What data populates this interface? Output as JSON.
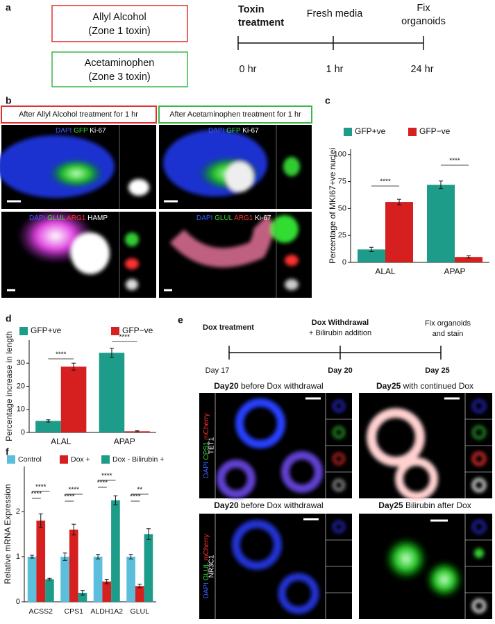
{
  "panel_a": {
    "label": "a",
    "toxins": [
      {
        "name": "Allyl Alcohol",
        "zone": "(Zone 1 toxin)"
      },
      {
        "name": "Acetaminophen",
        "zone": "(Zone 3 toxin)"
      }
    ],
    "timeline": [
      {
        "label": [
          "Toxin",
          "treatment"
        ],
        "time": "0 hr"
      },
      {
        "label": [
          "Fresh media"
        ],
        "time": "1 hr"
      },
      {
        "label": [
          "Fix",
          "organoids"
        ],
        "time": "24 hr"
      }
    ]
  },
  "panel_b": {
    "label": "b",
    "headers": [
      "After Allyl Alcohol treatment for 1 hr",
      "After Acetaminophen treatment for 1 hr"
    ],
    "stains": [
      [
        "DAPI",
        "GFP",
        "Ki-67"
      ],
      [
        "DAPI",
        "GFP",
        "Ki-67"
      ],
      [
        "DAPI",
        "GLUL",
        "ARG1",
        "HAMP"
      ],
      [
        "DAPI",
        "GLUL",
        "ARG1",
        "Ki-67"
      ]
    ]
  },
  "panel_e": {
    "label": "e",
    "timeline": [
      {
        "label": [
          "Dox treatment"
        ],
        "time": "Day 17"
      },
      {
        "label": [
          "Dox Withdrawal",
          "+ Bilirubin addition"
        ],
        "time": "Day 20"
      },
      {
        "label": [
          "Fix organoids",
          "and stain"
        ],
        "time": "Day 25"
      }
    ],
    "images": [
      {
        "day": "Day20",
        "caption": "before Dox withdrawal"
      },
      {
        "day": "Day25",
        "caption": "with continued Dox"
      },
      {
        "day": "Day20",
        "caption": "before Dox withdrawal"
      },
      {
        "day": "Day25",
        "caption": "Bilirubin after Dox"
      }
    ],
    "stains": [
      [
        "DAPI",
        "CPS1",
        "mCherry",
        "TET1"
      ],
      [
        "DAPI",
        "GLUL",
        "mCherry",
        "NR3C1"
      ]
    ]
  },
  "chart_data": [
    {
      "type": "bar",
      "label": "c",
      "ylabel": "Percentage of MKI67+ve nuclei",
      "categories": [
        "ALAL",
        "APAP"
      ],
      "series": [
        {
          "name": "GFP+ve",
          "color": "#1e9c8a",
          "values": [
            12,
            72
          ],
          "errors": [
            2,
            3.5
          ]
        },
        {
          "name": "GFP−ve",
          "color": "#d61f1f",
          "values": [
            56,
            5
          ],
          "errors": [
            2.5,
            1
          ]
        }
      ],
      "ylim": [
        0,
        105
      ],
      "yticks": [
        0,
        25,
        50,
        75,
        100
      ],
      "annotations": [
        "****",
        "****"
      ]
    },
    {
      "type": "bar",
      "label": "d",
      "ylabel": "Percentage increase in length",
      "categories": [
        "ALAL",
        "APAP"
      ],
      "series": [
        {
          "name": "GFP+ve",
          "color": "#1e9c8a",
          "values": [
            5,
            34.5
          ],
          "errors": [
            0.5,
            2
          ]
        },
        {
          "name": "GFP−ve",
          "color": "#d61f1f",
          "values": [
            28.5,
            0.5
          ],
          "errors": [
            1.5,
            0.2
          ]
        }
      ],
      "ylim": [
        0,
        40
      ],
      "yticks": [
        0,
        10,
        20,
        30
      ],
      "annotations": [
        "****",
        "****"
      ]
    },
    {
      "type": "bar",
      "label": "f",
      "ylabel": "Relative mRNA Expression",
      "categories": [
        "ACSS2",
        "CPS1",
        "ALDH1A2",
        "GLUL"
      ],
      "series": [
        {
          "name": "Control",
          "color": "#5bbfdc",
          "values": [
            1,
            1,
            1,
            1
          ],
          "errors": [
            0.03,
            0.08,
            0.05,
            0.05
          ]
        },
        {
          "name": "Dox +",
          "color": "#d61f1f",
          "values": [
            1.8,
            1.6,
            0.45,
            0.35
          ],
          "errors": [
            0.15,
            0.12,
            0.05,
            0.04
          ]
        },
        {
          "name": "Dox - Bilirubin +",
          "color": "#1e9c8a",
          "values": [
            0.5,
            0.2,
            2.25,
            1.5
          ],
          "errors": [
            0.02,
            0.05,
            0.1,
            0.12
          ]
        }
      ],
      "ylim": [
        0,
        3
      ],
      "yticks": [
        0,
        1,
        2
      ],
      "annotations": [
        "****",
        "****",
        "****",
        "****",
        "****",
        "****",
        "**",
        "****"
      ]
    }
  ]
}
